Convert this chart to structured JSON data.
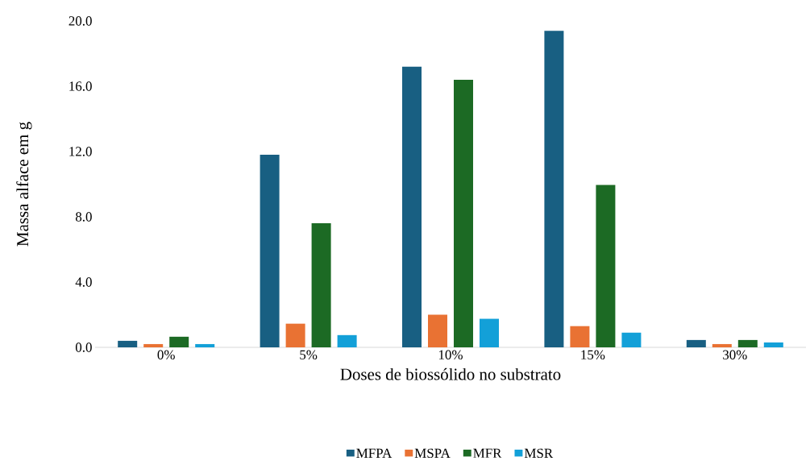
{
  "chart_data": {
    "type": "bar",
    "xlabel": "Doses de biossólido no substrato",
    "ylabel": "Massa alface em g",
    "categories": [
      "0%",
      "5%",
      "10%",
      "15%",
      "30%"
    ],
    "series": [
      {
        "name": "MFPA",
        "color": "#185f82",
        "values": [
          0.4,
          11.8,
          17.2,
          19.4,
          0.45
        ]
      },
      {
        "name": "MSPA",
        "color": "#e97233",
        "values": [
          0.2,
          1.45,
          2.0,
          1.3,
          0.2
        ]
      },
      {
        "name": "MFR",
        "color": "#1c6a24",
        "values": [
          0.65,
          7.6,
          16.4,
          9.95,
          0.45
        ]
      },
      {
        "name": "MSR",
        "color": "#13a0d8",
        "values": [
          0.2,
          0.75,
          1.75,
          0.9,
          0.3
        ]
      }
    ],
    "ylim": [
      0,
      20
    ],
    "yticks": [
      {
        "value": 0,
        "label": "0.0"
      },
      {
        "value": 4,
        "label": "4.0"
      },
      {
        "value": 8,
        "label": "8.0"
      },
      {
        "value": 12,
        "label": "12.0"
      },
      {
        "value": 16,
        "label": "16.0"
      },
      {
        "value": 20,
        "label": "20.0"
      }
    ],
    "legend": "bottom"
  }
}
